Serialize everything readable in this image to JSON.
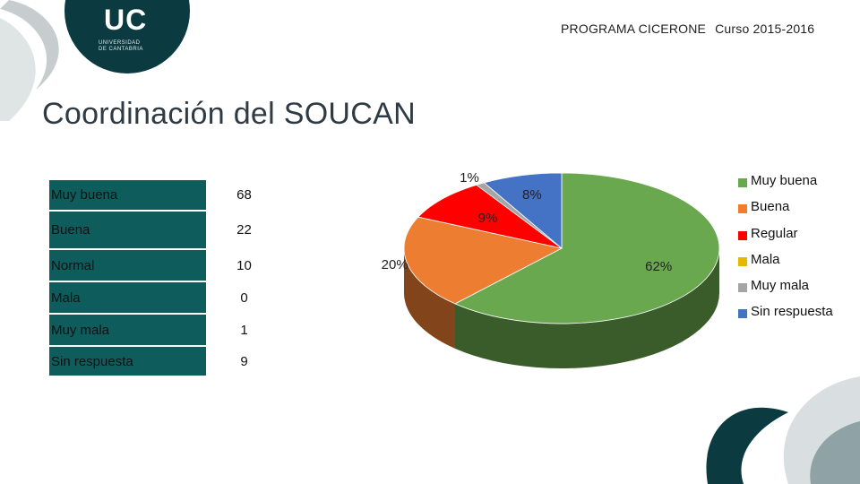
{
  "header": {
    "program": "PROGRAMA CICERONE",
    "course": "Curso 2015-2016"
  },
  "logo": {
    "mark": "UC",
    "line1": "UNIVERSIDAD",
    "line2": "DE CANTABRIA"
  },
  "slide_title": "Coordinación del SOUCAN",
  "table": {
    "rows": [
      {
        "label": "Muy buena",
        "value": "68"
      },
      {
        "label": "Buena",
        "value": "22"
      },
      {
        "label": "Normal",
        "value": "10"
      },
      {
        "label": "Mala",
        "value": "0"
      },
      {
        "label": "Muy mala",
        "value": "1"
      },
      {
        "label": "Sin respuesta",
        "value": "9"
      }
    ]
  },
  "colors": {
    "table_header": "#0e5d5c",
    "Muy buena": "#6aa84f",
    "Buena": "#ed7d31",
    "Regular": "#ff0000",
    "Mala": "#e6b800",
    "Muy mala": "#a5a5a5",
    "Sin respuesta": "#4472c4"
  },
  "chart_data": {
    "type": "pie",
    "style": "3d",
    "legend_position": "right",
    "categories": [
      "Muy buena",
      "Buena",
      "Regular",
      "Mala",
      "Muy mala",
      "Sin respuesta"
    ],
    "values": [
      68,
      22,
      10,
      0,
      1,
      9
    ],
    "labels": [
      "62%",
      "20%",
      "9%",
      "",
      "1%",
      "8%"
    ]
  }
}
